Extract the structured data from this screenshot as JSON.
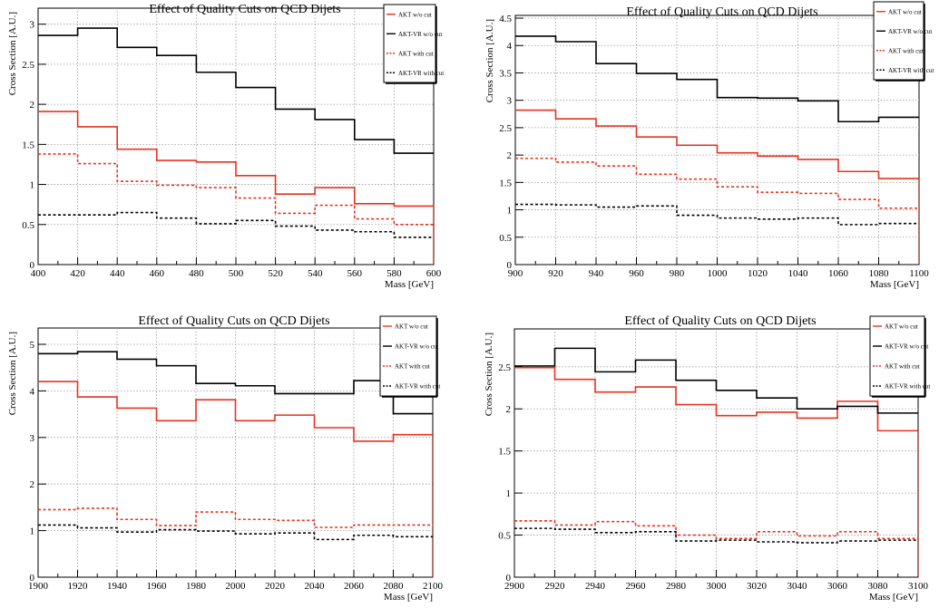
{
  "colors": {
    "akt": "#e8321e",
    "aktvr": "#000000",
    "grid": "#9a9a9a"
  },
  "chart_data": [
    {
      "type": "line",
      "title": "Effect of Quality Cuts on QCD Dijets",
      "xlabel": "Mass [GeV]",
      "ylabel": "Cross Section [A.U.]",
      "xlim": [
        400,
        600
      ],
      "ylim": [
        0,
        3.2
      ],
      "xticks": [
        "400",
        "420",
        "440",
        "460",
        "480",
        "500",
        "520",
        "540",
        "560",
        "580",
        "600"
      ],
      "yticks": [
        "0",
        "0.5",
        "1",
        "1.5",
        "2",
        "2.5",
        "3"
      ],
      "ytick_values": [
        0,
        0.5,
        1,
        1.5,
        2,
        2.5,
        3
      ],
      "grid": true,
      "legend": "top-right",
      "bin_edges": [
        400,
        420,
        440,
        460,
        480,
        500,
        520,
        540,
        560,
        580,
        600
      ],
      "series": [
        {
          "name": "AKT w/o cut",
          "style": "solid",
          "color": "akt",
          "values": [
            1.91,
            1.72,
            1.44,
            1.3,
            1.28,
            1.11,
            0.88,
            0.96,
            0.76,
            0.73
          ]
        },
        {
          "name": "AKT-VR w/o cut",
          "style": "solid",
          "color": "aktvr",
          "values": [
            2.86,
            2.95,
            2.71,
            2.61,
            2.4,
            2.21,
            1.94,
            1.81,
            1.56,
            1.39
          ]
        },
        {
          "name": "AKT with cut",
          "style": "dashed",
          "color": "akt",
          "values": [
            1.38,
            1.26,
            1.04,
            0.99,
            0.96,
            0.83,
            0.64,
            0.74,
            0.57,
            0.5
          ]
        },
        {
          "name": "AKT-VR with cut",
          "style": "dashed",
          "color": "aktvr",
          "values": [
            0.62,
            0.62,
            0.65,
            0.58,
            0.51,
            0.55,
            0.48,
            0.43,
            0.41,
            0.34
          ]
        }
      ]
    },
    {
      "type": "line",
      "title": "Effect of Quality Cuts on QCD Dijets",
      "xlabel": "Mass [GeV]",
      "ylabel": "Cross Section [A.U.]",
      "xlim": [
        900,
        1100
      ],
      "ylim": [
        0,
        4.55
      ],
      "xticks": [
        "900",
        "920",
        "940",
        "960",
        "980",
        "1000",
        "1020",
        "1040",
        "1060",
        "1080",
        "1100"
      ],
      "yticks": [
        "0",
        "0.5",
        "1",
        "1.5",
        "2",
        "2.5",
        "3",
        "3.5",
        "4",
        "4.5"
      ],
      "ytick_values": [
        0,
        0.5,
        1,
        1.5,
        2,
        2.5,
        3,
        3.5,
        4,
        4.5
      ],
      "grid": true,
      "legend": "top-right",
      "bin_edges": [
        900,
        920,
        940,
        960,
        980,
        1000,
        1020,
        1040,
        1060,
        1080,
        1100
      ],
      "series": [
        {
          "name": "AKT w/o cut",
          "style": "solid",
          "color": "akt",
          "values": [
            2.82,
            2.66,
            2.53,
            2.33,
            2.18,
            2.04,
            1.98,
            1.92,
            1.7,
            1.57
          ]
        },
        {
          "name": "AKT-VR w/o cut",
          "style": "solid",
          "color": "aktvr",
          "values": [
            4.17,
            4.07,
            3.67,
            3.49,
            3.38,
            3.05,
            3.04,
            2.99,
            2.61,
            2.69
          ]
        },
        {
          "name": "AKT with cut",
          "style": "dashed",
          "color": "akt",
          "values": [
            1.94,
            1.87,
            1.8,
            1.65,
            1.56,
            1.42,
            1.32,
            1.3,
            1.19,
            1.03
          ]
        },
        {
          "name": "AKT-VR with cut",
          "style": "dashed",
          "color": "aktvr",
          "values": [
            1.1,
            1.09,
            1.05,
            1.07,
            0.9,
            0.85,
            0.83,
            0.85,
            0.73,
            0.75
          ]
        }
      ]
    },
    {
      "type": "line",
      "title": "Effect of Quality Cuts on QCD Dijets",
      "xlabel": "Mass [GeV]",
      "ylabel": "Cross Section [A.U.]",
      "xlim": [
        1900,
        2100
      ],
      "ylim": [
        0,
        5.35
      ],
      "xticks": [
        "1900",
        "1920",
        "1940",
        "1960",
        "1980",
        "2000",
        "2020",
        "2040",
        "2060",
        "2080",
        "2100"
      ],
      "yticks": [
        "0",
        "1",
        "2",
        "3",
        "4",
        "5"
      ],
      "ytick_values": [
        0,
        1,
        2,
        3,
        4,
        5
      ],
      "grid": true,
      "legend": "top-right",
      "bin_edges": [
        1900,
        1920,
        1940,
        1960,
        1980,
        2000,
        2020,
        2040,
        2060,
        2080,
        2100
      ],
      "series": [
        {
          "name": "AKT w/o cut",
          "style": "solid",
          "color": "akt",
          "values": [
            4.2,
            3.87,
            3.63,
            3.36,
            3.81,
            3.36,
            3.48,
            3.21,
            2.92,
            3.06
          ]
        },
        {
          "name": "AKT-VR w/o cut",
          "style": "solid",
          "color": "aktvr",
          "values": [
            4.8,
            4.84,
            4.68,
            4.54,
            4.16,
            4.11,
            3.94,
            3.94,
            4.22,
            3.51
          ]
        },
        {
          "name": "AKT with cut",
          "style": "dashed",
          "color": "akt",
          "values": [
            1.45,
            1.48,
            1.24,
            1.11,
            1.4,
            1.24,
            1.22,
            1.07,
            1.12,
            1.12
          ]
        },
        {
          "name": "AKT-VR with cut",
          "style": "dashed",
          "color": "aktvr",
          "values": [
            1.12,
            1.06,
            0.97,
            1.02,
            0.99,
            0.93,
            0.95,
            0.81,
            0.9,
            0.87
          ]
        }
      ]
    },
    {
      "type": "line",
      "title": "Effect of Quality Cuts on QCD Dijets",
      "xlabel": "Mass [GeV]",
      "ylabel": "Cross Section [A.U.]",
      "xlim": [
        2900,
        3100
      ],
      "ylim": [
        0,
        2.95
      ],
      "xticks": [
        "2900",
        "2920",
        "2940",
        "2960",
        "2980",
        "3000",
        "3020",
        "3040",
        "3060",
        "3080",
        "3100"
      ],
      "yticks": [
        "0",
        "0.5",
        "1",
        "1.5",
        "2",
        "2.5"
      ],
      "ytick_values": [
        0,
        0.5,
        1,
        1.5,
        2,
        2.5
      ],
      "grid": true,
      "legend": "top-right",
      "bin_edges": [
        2900,
        2920,
        2940,
        2960,
        2980,
        3000,
        3020,
        3040,
        3060,
        3080,
        3100
      ],
      "series": [
        {
          "name": "AKT w/o cut",
          "style": "solid",
          "color": "akt",
          "values": [
            2.49,
            2.35,
            2.2,
            2.26,
            2.05,
            1.92,
            1.96,
            1.89,
            2.09,
            1.74
          ]
        },
        {
          "name": "AKT-VR w/o cut",
          "style": "solid",
          "color": "aktvr",
          "values": [
            2.51,
            2.72,
            2.44,
            2.58,
            2.34,
            2.22,
            2.13,
            2.0,
            2.03,
            1.95
          ]
        },
        {
          "name": "AKT with cut",
          "style": "dashed",
          "color": "akt",
          "values": [
            0.67,
            0.62,
            0.66,
            0.61,
            0.5,
            0.46,
            0.54,
            0.49,
            0.54,
            0.46
          ]
        },
        {
          "name": "AKT-VR with cut",
          "style": "dashed",
          "color": "aktvr",
          "values": [
            0.58,
            0.57,
            0.53,
            0.54,
            0.43,
            0.44,
            0.42,
            0.41,
            0.43,
            0.44
          ]
        }
      ]
    }
  ]
}
